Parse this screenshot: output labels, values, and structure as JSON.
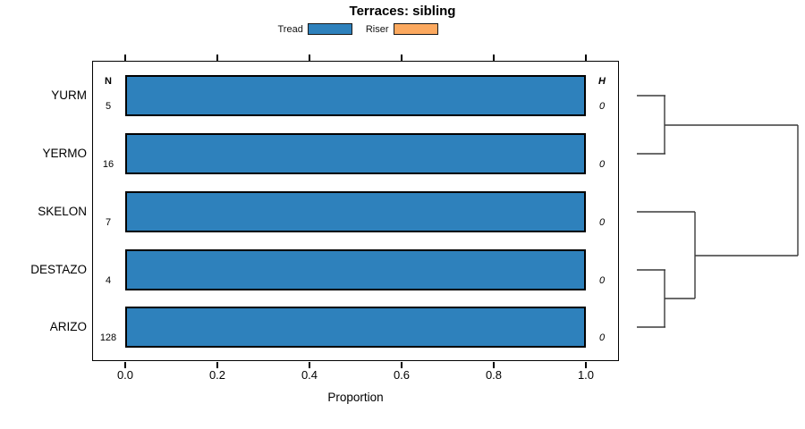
{
  "title": "Terraces: sibling",
  "legend": {
    "items": [
      {
        "label": "Tread",
        "color": "#2E81BC"
      },
      {
        "label": "Riser",
        "color": "#FCA95F"
      }
    ]
  },
  "columns": {
    "n_header": "N",
    "h_header": "H"
  },
  "rows": [
    {
      "label": "YURM",
      "n": "5",
      "h": "0",
      "value": 1.0
    },
    {
      "label": "YERMO",
      "n": "16",
      "h": "0",
      "value": 1.0
    },
    {
      "label": "SKELON",
      "n": "7",
      "h": "0",
      "value": 1.0
    },
    {
      "label": "DESTAZO",
      "n": "4",
      "h": "0",
      "value": 1.0
    },
    {
      "label": "ARIZO",
      "n": "128",
      "h": "0",
      "value": 1.0
    }
  ],
  "axis": {
    "xlabel": "Proportion",
    "ticks": [
      {
        "label": "0.0",
        "value": 0.0
      },
      {
        "label": "0.2",
        "value": 0.2
      },
      {
        "label": "0.4",
        "value": 0.4
      },
      {
        "label": "0.6",
        "value": 0.6
      },
      {
        "label": "0.8",
        "value": 0.8
      },
      {
        "label": "1.0",
        "value": 1.0
      }
    ]
  },
  "chart_data": {
    "type": "bar",
    "orientation": "horizontal",
    "title": "Terraces: sibling",
    "xlabel": "Proportion",
    "xlim": [
      0.0,
      1.0
    ],
    "xticks": [
      0.0,
      0.2,
      0.4,
      0.6,
      0.8,
      1.0
    ],
    "grid": false,
    "legend_position": "top",
    "categories": [
      "YURM",
      "YERMO",
      "SKELON",
      "DESTAZO",
      "ARIZO"
    ],
    "series": [
      {
        "name": "Tread",
        "color": "#2E81BC",
        "values": [
          1.0,
          1.0,
          1.0,
          1.0,
          1.0
        ]
      },
      {
        "name": "Riser",
        "color": "#FCA95F",
        "values": [
          0.0,
          0.0,
          0.0,
          0.0,
          0.0
        ]
      }
    ],
    "n_counts": [
      5,
      16,
      7,
      4,
      128
    ],
    "h_values": [
      0,
      0,
      0,
      0,
      0
    ],
    "dendrogram": {
      "side": "right",
      "merges": [
        {
          "members": [
            "YURM",
            "YERMO"
          ],
          "order": 1
        },
        {
          "members": [
            "DESTAZO",
            "ARIZO"
          ],
          "order": 1
        },
        {
          "members": [
            "SKELON",
            "DESTAZO+ARIZO"
          ],
          "order": 2
        },
        {
          "members": [
            "YURM+YERMO",
            "SKELON+DESTAZO+ARIZO"
          ],
          "order": 3
        }
      ],
      "segments": [
        [
          712,
          107,
          744,
          107
        ],
        [
          712,
          172,
          744,
          172
        ],
        [
          743,
          107,
          743,
          172
        ],
        [
          743,
          140,
          892,
          140
        ],
        [
          712,
          237,
          777,
          237
        ],
        [
          712,
          302,
          744,
          302
        ],
        [
          712,
          366,
          744,
          366
        ],
        [
          743,
          302,
          743,
          366
        ],
        [
          743,
          334,
          777,
          334
        ],
        [
          777,
          237,
          777,
          334
        ],
        [
          777,
          286,
          892,
          286
        ],
        [
          892,
          140,
          892,
          286
        ]
      ],
      "line_color": "#3a3a3a"
    }
  }
}
